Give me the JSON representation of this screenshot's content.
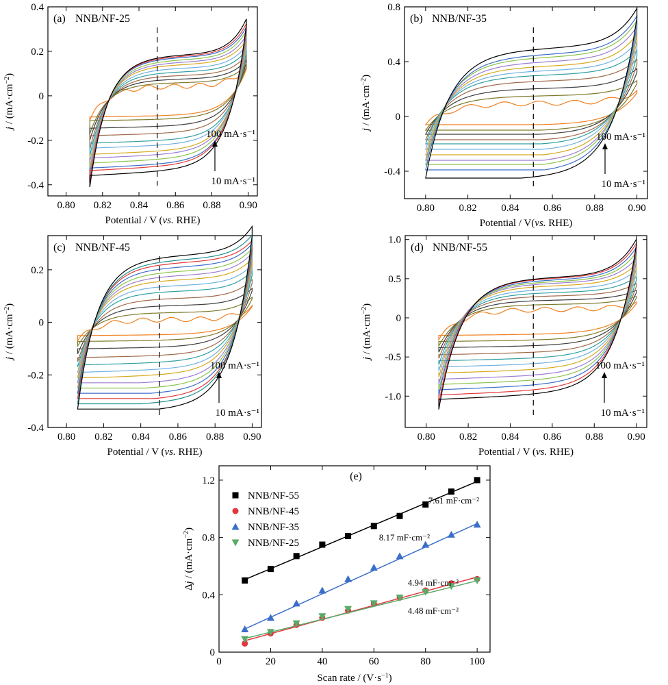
{
  "chart_data": [
    {
      "type": "line",
      "panel": "a",
      "panel_label": "(a)",
      "title": "NNB/NF-25",
      "xlabel": "Potential / V (vs. RHE)",
      "xlabel_parts": [
        "Potential / V (",
        "vs.",
        " RHE)"
      ],
      "ylabel": "j / (mA·cm⁻²)",
      "ylabel_parts": [
        "j",
        " / (mA·cm",
        "−2",
        ")"
      ],
      "xlim": [
        0.79,
        0.905
      ],
      "ylim": [
        -0.45,
        0.4
      ],
      "xticks": [
        "0.80",
        "0.82",
        "0.84",
        "0.86",
        "0.88",
        "0.90"
      ],
      "xtick_values": [
        0.8,
        0.82,
        0.84,
        0.86,
        0.88,
        0.9
      ],
      "yticks": [
        "-0.4",
        "-0.2",
        "0",
        "0.2",
        "0.4"
      ],
      "ytick_values": [
        -0.4,
        -0.2,
        0,
        0.2,
        0.4
      ],
      "xstart": 0.813,
      "xend": 0.899,
      "dashed_x": 0.85,
      "cross_x": 0.828,
      "ann_top": "100 mA·s⁻¹",
      "ann_bottom": "10 mA·s⁻¹",
      "series": [
        {
          "top": 0.04,
          "bottom": -0.085,
          "end": 0.12,
          "start": -0.11
        },
        {
          "top": 0.055,
          "bottom": -0.1,
          "end": 0.13,
          "start": -0.17
        },
        {
          "top": 0.07,
          "bottom": -0.13,
          "end": 0.15,
          "start": -0.2
        },
        {
          "top": 0.085,
          "bottom": -0.16,
          "end": 0.17,
          "start": -0.24
        },
        {
          "top": 0.1,
          "bottom": -0.19,
          "end": 0.19,
          "start": -0.27
        },
        {
          "top": 0.115,
          "bottom": -0.21,
          "end": 0.21,
          "start": -0.3
        },
        {
          "top": 0.13,
          "bottom": -0.235,
          "end": 0.23,
          "start": -0.33
        },
        {
          "top": 0.14,
          "bottom": -0.25,
          "end": 0.25,
          "start": -0.35
        },
        {
          "top": 0.15,
          "bottom": -0.27,
          "end": 0.27,
          "start": -0.37
        },
        {
          "top": 0.16,
          "bottom": -0.29,
          "end": 0.285,
          "start": -0.38
        },
        {
          "top": 0.165,
          "bottom": -0.3,
          "end": 0.3,
          "start": -0.39
        },
        {
          "top": 0.17,
          "bottom": -0.32,
          "end": 0.32,
          "start": -0.41
        }
      ]
    },
    {
      "type": "line",
      "panel": "b",
      "panel_label": "(b)",
      "title": "NNB/NF-35",
      "xlabel": "Potential / V(vs. RHE)",
      "xlabel_parts": [
        "Potential / V(",
        "vs.",
        " RHE)"
      ],
      "ylabel": "j / (mA·cm⁻²)",
      "ylabel_parts": [
        "j",
        " / (mA·cm",
        "−2",
        ")"
      ],
      "xlim": [
        0.79,
        0.905
      ],
      "ylim": [
        -0.6,
        0.8
      ],
      "xticks": [
        "0.80",
        "0.82",
        "0.84",
        "0.86",
        "0.88",
        "0.90"
      ],
      "xtick_values": [
        0.8,
        0.82,
        0.84,
        0.86,
        0.88,
        0.9
      ],
      "yticks": [
        "-0.4",
        "0",
        "0.4",
        "0.8"
      ],
      "ytick_values": [
        -0.4,
        0,
        0.4,
        0.8
      ],
      "xstart": 0.8,
      "xend": 0.9,
      "dashed_x": 0.851,
      "cross_x": 0.804,
      "ann_top": "100 mA·s⁻¹",
      "ann_bottom": "10 mA·s⁻¹",
      "series": [
        {
          "top": 0.09,
          "bottom": -0.06,
          "end": 0.17,
          "start": -0.06
        },
        {
          "top": 0.14,
          "bottom": -0.1,
          "end": 0.24,
          "start": -0.1
        },
        {
          "top": 0.19,
          "bottom": -0.13,
          "end": 0.32,
          "start": -0.13
        },
        {
          "top": 0.24,
          "bottom": -0.17,
          "end": 0.38,
          "start": -0.17
        },
        {
          "top": 0.28,
          "bottom": -0.2,
          "end": 0.44,
          "start": -0.2
        },
        {
          "top": 0.31,
          "bottom": -0.24,
          "end": 0.5,
          "start": -0.24
        },
        {
          "top": 0.34,
          "bottom": -0.28,
          "end": 0.55,
          "start": -0.28
        },
        {
          "top": 0.37,
          "bottom": -0.32,
          "end": 0.6,
          "start": -0.32
        },
        {
          "top": 0.4,
          "bottom": -0.35,
          "end": 0.64,
          "start": -0.35
        },
        {
          "top": 0.42,
          "bottom": -0.39,
          "end": 0.67,
          "start": -0.39
        },
        {
          "top": 0.46,
          "bottom": -0.43,
          "end": 0.72,
          "start": -0.45
        }
      ]
    },
    {
      "type": "line",
      "panel": "c",
      "panel_label": "(c)",
      "title": "NNB/NF-45",
      "xlabel": "Potential / V (vs. RHE)",
      "xlabel_parts": [
        "Potential / V (",
        "vs.",
        " RHE)"
      ],
      "ylabel": "j / (mA·cm⁻²)",
      "ylabel_parts": [
        "j",
        " / (mA·cm",
        "−2",
        ")"
      ],
      "xlim": [
        0.79,
        0.905
      ],
      "ylim": [
        -0.4,
        0.33
      ],
      "xticks": [
        "0.80",
        "0.82",
        "0.84",
        "0.86",
        "0.88",
        "0.90"
      ],
      "xtick_values": [
        0.8,
        0.82,
        0.84,
        0.86,
        0.88,
        0.9
      ],
      "yticks": [
        "-0.4",
        "-0.2",
        "0",
        "0.2"
      ],
      "ytick_values": [
        -0.4,
        -0.2,
        0,
        0.2
      ],
      "xstart": 0.806,
      "xend": 0.9,
      "dashed_x": 0.85,
      "cross_x": 0.812,
      "ann_top": "100 mA·s⁻¹",
      "ann_bottom": "10 mA·s⁻¹",
      "series": [
        {
          "top": 0.01,
          "bottom": -0.045,
          "end": 0.06,
          "start": -0.07
        },
        {
          "top": 0.035,
          "bottom": -0.065,
          "end": 0.09,
          "start": -0.09
        },
        {
          "top": 0.06,
          "bottom": -0.09,
          "end": 0.12,
          "start": -0.12
        },
        {
          "top": 0.085,
          "bottom": -0.12,
          "end": 0.15,
          "start": -0.15
        },
        {
          "top": 0.11,
          "bottom": -0.145,
          "end": 0.18,
          "start": -0.17
        },
        {
          "top": 0.13,
          "bottom": -0.17,
          "end": 0.2,
          "start": -0.19
        },
        {
          "top": 0.15,
          "bottom": -0.19,
          "end": 0.22,
          "start": -0.21
        },
        {
          "top": 0.165,
          "bottom": -0.215,
          "end": 0.24,
          "start": -0.23
        },
        {
          "top": 0.18,
          "bottom": -0.235,
          "end": 0.255,
          "start": -0.25
        },
        {
          "top": 0.195,
          "bottom": -0.255,
          "end": 0.27,
          "start": -0.27
        },
        {
          "top": 0.21,
          "bottom": -0.275,
          "end": 0.28,
          "start": -0.29
        },
        {
          "top": 0.22,
          "bottom": -0.29,
          "end": 0.3,
          "start": -0.31
        },
        {
          "top": 0.235,
          "bottom": -0.315,
          "end": 0.33,
          "start": -0.33
        }
      ]
    },
    {
      "type": "line",
      "panel": "d",
      "panel_label": "(d)",
      "title": "NNB/NF-55",
      "xlabel": "Potential / V (vs. RHE)",
      "xlabel_parts": [
        "Potential / V (",
        "vs.",
        " RHE)"
      ],
      "ylabel": "j / (mA·cm⁻²)",
      "ylabel_parts": [
        "j",
        " / (mA·cm",
        "−2",
        ")"
      ],
      "xlim": [
        0.79,
        0.905
      ],
      "ylim": [
        -1.4,
        1.05
      ],
      "xticks": [
        "0.80",
        "0.82",
        "0.84",
        "0.86",
        "0.88",
        "0.90"
      ],
      "xtick_values": [
        0.8,
        0.82,
        0.84,
        0.86,
        0.88,
        0.9
      ],
      "yticks": [
        "-1.0",
        "-0.5",
        "0",
        "0.5",
        "1.0"
      ],
      "ytick_values": [
        -1.0,
        -0.5,
        0,
        0.5,
        1.0
      ],
      "xstart": 0.806,
      "xend": 0.9,
      "dashed_x": 0.851,
      "cross_x": 0.832,
      "ann_top": "100 mA·s⁻¹",
      "ann_bottom": "10 mA·s⁻¹",
      "series": [
        {
          "top": 0.1,
          "bottom": -0.2,
          "end": 0.18,
          "start": -0.28
        },
        {
          "top": 0.16,
          "bottom": -0.27,
          "end": 0.25,
          "start": -0.36
        },
        {
          "top": 0.21,
          "bottom": -0.34,
          "end": 0.32,
          "start": -0.44
        },
        {
          "top": 0.26,
          "bottom": -0.42,
          "end": 0.4,
          "start": -0.52
        },
        {
          "top": 0.3,
          "bottom": -0.49,
          "end": 0.48,
          "start": -0.6
        },
        {
          "top": 0.34,
          "bottom": -0.56,
          "end": 0.56,
          "start": -0.68
        },
        {
          "top": 0.38,
          "bottom": -0.63,
          "end": 0.63,
          "start": -0.76
        },
        {
          "top": 0.41,
          "bottom": -0.7,
          "end": 0.7,
          "start": -0.85
        },
        {
          "top": 0.43,
          "bottom": -0.76,
          "end": 0.77,
          "start": -0.93
        },
        {
          "top": 0.45,
          "bottom": -0.82,
          "end": 0.83,
          "start": -1.0
        },
        {
          "top": 0.47,
          "bottom": -0.88,
          "end": 0.88,
          "start": -1.1
        },
        {
          "top": 0.48,
          "bottom": -0.93,
          "end": 0.93,
          "start": -1.17
        }
      ]
    },
    {
      "type": "scatter",
      "panel": "e",
      "panel_label": "(e)",
      "xlabel": "Scan rate / (V·s⁻¹)",
      "xlabel_parts": [
        "Scan rate / (V·s",
        "−1",
        ")"
      ],
      "ylabel": "Δj / (mA·cm⁻²)",
      "ylabel_parts": [
        "Δ",
        "j",
        " / (mA·cm",
        "−2",
        ")"
      ],
      "xlim": [
        0,
        105
      ],
      "ylim": [
        0,
        1.3
      ],
      "xticks": [
        "0",
        "20",
        "40",
        "60",
        "80",
        "100"
      ],
      "xtick_values": [
        0,
        20,
        40,
        60,
        80,
        100
      ],
      "yticks": [
        "0",
        "0.4",
        "0.8",
        "1.2"
      ],
      "ytick_values": [
        0,
        0.4,
        0.8,
        1.2
      ],
      "legend_position": "top-left",
      "x": [
        10,
        20,
        30,
        40,
        50,
        60,
        70,
        80,
        90,
        100
      ],
      "series": [
        {
          "name": "NNB/NF-55",
          "marker": "square",
          "color": "#000000",
          "values": [
            0.5,
            0.58,
            0.67,
            0.75,
            0.81,
            0.88,
            0.95,
            1.03,
            1.12,
            1.2
          ],
          "fit": [
            0.43,
            0.00761
          ],
          "slope_label": "7.61 mF·cm⁻²"
        },
        {
          "name": "NNB/NF-45",
          "marker": "circle",
          "color": "#e2363d",
          "values": [
            0.06,
            0.13,
            0.19,
            0.24,
            0.29,
            0.34,
            0.38,
            0.43,
            0.48,
            0.51
          ],
          "fit": [
            0.03,
            0.00494
          ],
          "slope_label": "4.94 mF·cm⁻²"
        },
        {
          "name": "NNB/NF-35",
          "marker": "triangle-up",
          "color": "#3a6ec9",
          "values": [
            0.16,
            0.24,
            0.34,
            0.43,
            0.51,
            0.59,
            0.67,
            0.75,
            0.82,
            0.89
          ],
          "fit": [
            0.08,
            0.00817
          ],
          "slope_label": "8.17 mF·cm⁻²"
        },
        {
          "name": "NNB/NF-25",
          "marker": "triangle-down",
          "color": "#5aaa68",
          "values": [
            0.09,
            0.14,
            0.2,
            0.25,
            0.3,
            0.34,
            0.38,
            0.42,
            0.46,
            0.5
          ],
          "fit": [
            0.05,
            0.00448
          ],
          "slope_label": "4.48 mF·cm⁻²"
        }
      ]
    }
  ],
  "cv_palette": [
    "#f07f1f",
    "#7d7a2a",
    "#3d3d3d",
    "#a06a4a",
    "#2f9f9f",
    "#6fb1e0",
    "#d6a81c",
    "#9b7ed1",
    "#8bc34a",
    "#3b6ec9",
    "#e23838",
    "#1f8f8f",
    "#000000"
  ]
}
